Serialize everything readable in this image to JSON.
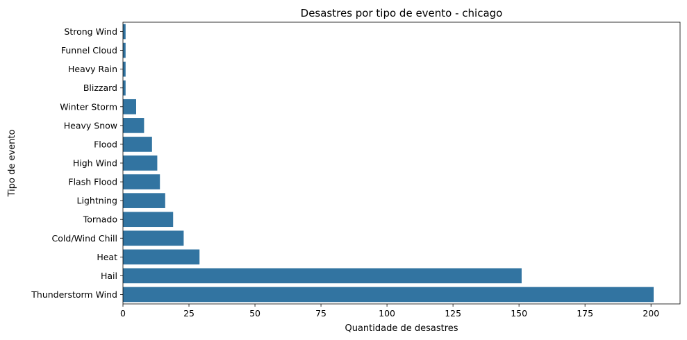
{
  "chart_data": {
    "type": "bar",
    "orientation": "horizontal",
    "title": "Desastres por tipo de evento - chicago",
    "xlabel": "Quantidade de desastres",
    "ylabel": "Tipo de evento",
    "categories": [
      "Strong Wind",
      "Funnel Cloud",
      "Heavy Rain",
      "Blizzard",
      "Winter Storm",
      "Heavy Snow",
      "Flood",
      "High Wind",
      "Flash Flood",
      "Lightning",
      "Tornado",
      "Cold/Wind Chill",
      "Heat",
      "Hail",
      "Thunderstorm Wind"
    ],
    "values": [
      1,
      1,
      1,
      1,
      5,
      8,
      11,
      13,
      14,
      16,
      19,
      23,
      29,
      151,
      201
    ],
    "xlim": [
      0,
      211
    ],
    "xticks": [
      0,
      25,
      50,
      75,
      100,
      125,
      150,
      175,
      200
    ],
    "grid": false,
    "legend": "none",
    "bar_color": "#3274a1"
  }
}
